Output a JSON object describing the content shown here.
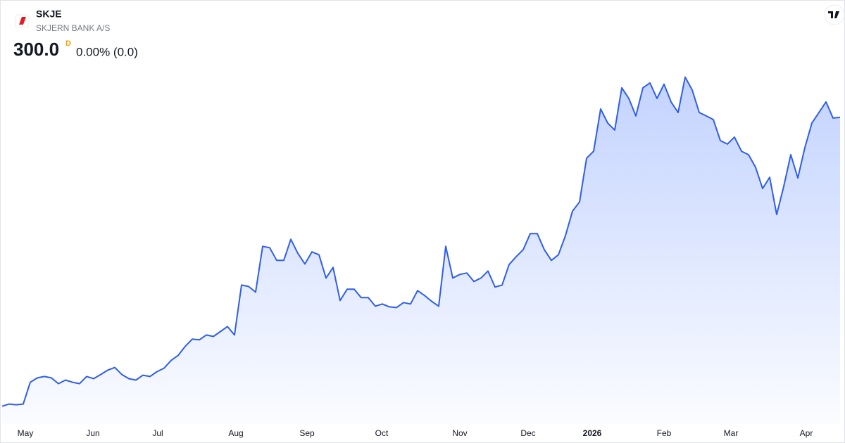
{
  "header": {
    "symbol": "SKJE",
    "name": "SKJERN BANK A/S",
    "price": "300.0",
    "flag": "D",
    "change": "0.00% (0.0)"
  },
  "chart_data": {
    "type": "area",
    "color": "#2f5ee8",
    "values": [
      139.8,
      141.0,
      140.6,
      141.0,
      153.1,
      155.5,
      156.3,
      155.5,
      152.3,
      154.3,
      153.1,
      152.3,
      156.3,
      155.1,
      157.4,
      159.8,
      161.3,
      157.4,
      155.1,
      154.3,
      157.0,
      156.3,
      159.0,
      160.9,
      165.2,
      168.0,
      173.0,
      177.0,
      176.6,
      179.3,
      178.5,
      181.2,
      184.0,
      179.3,
      207.0,
      206.2,
      203.1,
      228.5,
      227.7,
      220.7,
      220.7,
      232.4,
      224.6,
      218.7,
      225.4,
      223.8,
      210.9,
      216.8,
      198.4,
      204.7,
      204.7,
      200.0,
      200.0,
      195.3,
      196.5,
      194.9,
      194.5,
      197.3,
      196.5,
      203.9,
      201.2,
      198.0,
      195.3,
      228.5,
      210.9,
      212.9,
      213.7,
      209.0,
      210.9,
      214.8,
      205.9,
      207.0,
      218.4,
      222.7,
      226.6,
      235.5,
      235.5,
      226.6,
      220.7,
      223.8,
      234.4,
      248.0,
      253.1,
      277.3,
      281.2,
      304.7,
      296.9,
      293.0,
      316.4,
      310.5,
      300.8,
      316.4,
      319.1,
      310.5,
      318.4,
      308.6,
      302.7,
      322.3,
      315.2,
      302.7,
      300.8,
      298.8,
      287.1,
      285.2,
      289.1,
      281.2,
      279.3,
      272.3,
      260.5,
      266.8,
      246.1,
      261.7,
      279.3,
      266.4,
      283.2,
      296.9,
      302.7,
      308.6,
      299.6,
      300.0
    ],
    "ylim": [
      135,
      330
    ],
    "xlim": [
      0,
      119
    ],
    "xticks": [
      {
        "value": 3.3,
        "label": "May"
      },
      {
        "value": 12.9,
        "label": "Jun"
      },
      {
        "value": 22.1,
        "label": "Jul"
      },
      {
        "value": 33.2,
        "label": "Aug"
      },
      {
        "value": 43.3,
        "label": "Sep"
      },
      {
        "value": 53.9,
        "label": "Oct"
      },
      {
        "value": 65,
        "label": "Nov"
      },
      {
        "value": 74.7,
        "label": "Dec"
      },
      {
        "value": 83.8,
        "label": "2026"
      },
      {
        "value": 94,
        "label": "Feb"
      },
      {
        "value": 103.5,
        "label": "Mar"
      },
      {
        "value": 114.2,
        "label": "Apr"
      }
    ]
  }
}
